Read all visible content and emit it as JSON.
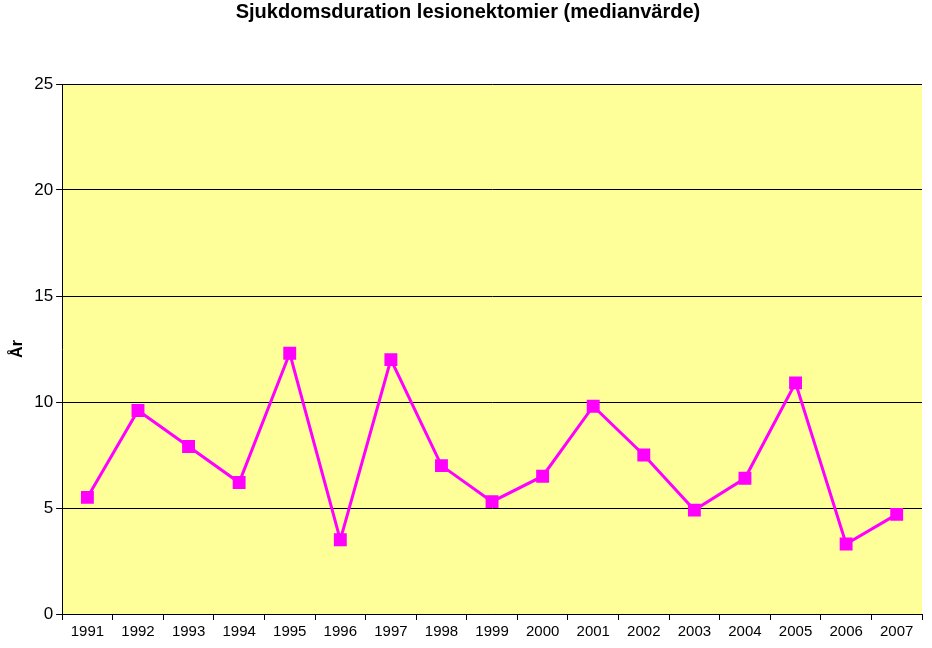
{
  "chart_data": {
    "type": "line",
    "title": "Sjukdomsduration lesionektomier (medianvärde)",
    "y_label": "År",
    "categories": [
      "1991",
      "1992",
      "1993",
      "1994",
      "1995",
      "1996",
      "1997",
      "1998",
      "1999",
      "2000",
      "2001",
      "2002",
      "2003",
      "2004",
      "2005",
      "2006",
      "2007"
    ],
    "values": [
      5.5,
      9.6,
      7.9,
      6.2,
      12.3,
      3.5,
      12.0,
      7.0,
      5.3,
      6.5,
      9.8,
      7.5,
      4.9,
      6.4,
      10.9,
      3.3,
      4.7
    ],
    "color": "#ff00ff",
    "marker": "square",
    "line_style": "solid",
    "ylim": [
      0,
      25
    ],
    "yticks": [
      0,
      5,
      10,
      15,
      20,
      25
    ],
    "grid": true
  }
}
